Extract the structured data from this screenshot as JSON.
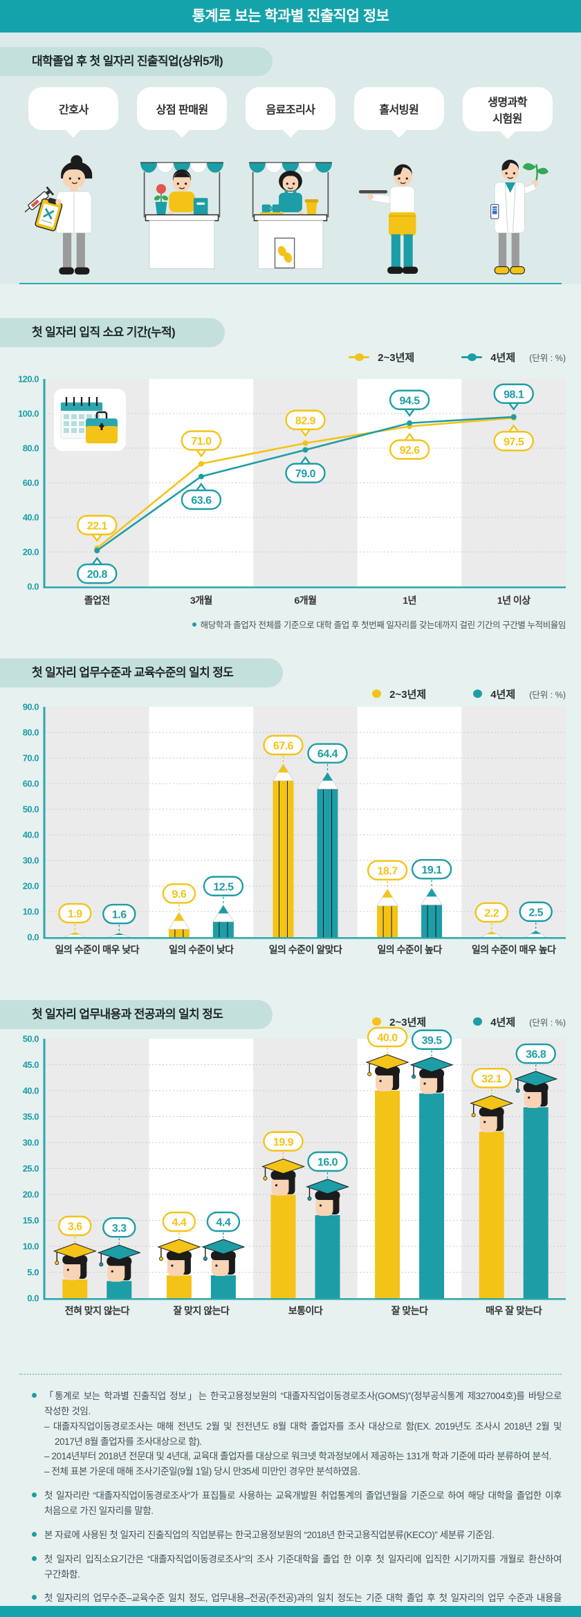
{
  "page": {
    "title": "통계로 보는 학과별 진출직업 정보",
    "unit_label": "(단위 : %)",
    "colors": {
      "header_teal": "#15A3AB",
      "series_yellow": "#F3C317",
      "series_teal": "#1D9DA6",
      "axis_teal": "#2AA7AE",
      "pill_bg": "#C3E0DD",
      "band_bg": "#DCEBE9",
      "page_bg": "#E7F1F0",
      "stripe_gray": "#EBEBEB"
    }
  },
  "jobs": {
    "header": "대학졸업 후 첫 일자리 진출직업(상위5개)",
    "items": [
      {
        "label": "간호사",
        "icon": "nurse-illustration"
      },
      {
        "label": "상점 판매원",
        "icon": "shop-seller-illustration"
      },
      {
        "label": "음료조리사",
        "icon": "barista-illustration"
      },
      {
        "label": "홀서빙원",
        "icon": "waiter-illustration"
      },
      {
        "label": "생명과학\n시험원",
        "icon": "lab-tester-illustration"
      }
    ]
  },
  "chart_data": [
    {
      "id": "time-to-first-job",
      "type": "line",
      "title": "첫 일자리 입직 소요 기간(누적)",
      "unit": "(단위 : %)",
      "categories": [
        "졸업전",
        "3개월",
        "6개월",
        "1년",
        "1년 이상"
      ],
      "series": [
        {
          "name": "2~3년제",
          "color": "#F3C317",
          "values": [
            22.1,
            71.0,
            82.9,
            92.6,
            97.5
          ]
        },
        {
          "name": "4년제",
          "color": "#1D9DA6",
          "values": [
            20.8,
            63.6,
            79.0,
            94.5,
            98.1
          ]
        }
      ],
      "ylim": [
        0,
        120
      ],
      "ytick_step": 20,
      "grid": "dotted",
      "legend_position": "top-right",
      "footnote": "해당학과 졸업자 전체를 기준으로 대학 졸업 후 첫번째 일자리를 갖는데까지 걸린 기간의 구간별 누적비율임"
    },
    {
      "id": "education-level-match",
      "type": "bar",
      "bar_style": "pencil",
      "title": "첫 일자리 업무수준과 교육수준의 일치 정도",
      "unit": "(단위 : %)",
      "categories": [
        "일의 수준이 매우 낮다",
        "일의 수준이 낮다",
        "일의 수준이 알맞다",
        "일의 수준이 높다",
        "일의 수준이 매우 높다"
      ],
      "series": [
        {
          "name": "2~3년제",
          "color": "#F3C317",
          "values": [
            1.9,
            9.6,
            67.6,
            18.7,
            2.2
          ]
        },
        {
          "name": "4년제",
          "color": "#1D9DA6",
          "values": [
            1.6,
            12.5,
            64.4,
            19.1,
            2.5
          ]
        }
      ],
      "ylim": [
        0,
        90
      ],
      "ytick_step": 10,
      "grid": "dotted",
      "legend_position": "top-right"
    },
    {
      "id": "major-match",
      "type": "bar",
      "bar_style": "graduate",
      "title": "첫 일자리 업무내용과 전공과의 일치 정도",
      "unit": "(단위 : %)",
      "categories": [
        "전혀 맞지 않는다",
        "잘 맞지 않는다",
        "보통이다",
        "잘 맞는다",
        "매우 잘 맞는다"
      ],
      "series": [
        {
          "name": "2~3년제",
          "color": "#F3C317",
          "values": [
            3.6,
            4.4,
            19.9,
            40.0,
            32.1
          ]
        },
        {
          "name": "4년제",
          "color": "#1D9DA6",
          "values": [
            3.3,
            4.4,
            16.0,
            39.5,
            36.8
          ]
        }
      ],
      "ylim": [
        0,
        50
      ],
      "ytick_step": 5,
      "grid": "dotted",
      "legend_position": "top-right"
    }
  ],
  "notes": [
    {
      "text": "「통계로 보는 학과별 진출직업 정보」는 한국고용정보원의 “대졸자직업이동경로조사(GOMS)”(정부공식통계 제327004호)를 바탕으로 작성한 것임.",
      "subs": [
        "대졸자직업이동경로조사는 매해 전년도 2월 및 전전년도 8월 대학 졸업자를 조사 대상으로 함(EX. 2019년도 조사시 2018년 2월 및 2017년 8월 졸업자를 조사대상으로 함).",
        "2014년부터 2018년 전문대 및 4년대, 교육대 졸업자를 대상으로 워크넷 학과정보에서 제공하는 131개 학과 기준에 따라 분류하여 분석.",
        "전체 표본 가운데 매해 조사기준일(9월 1일) 당시 만35세 미만인 경우만 분석하였음."
      ]
    },
    {
      "text": "첫 일자리란 “대졸자직업이동경로조사”가 표집틀로 사용하는 교육개발원 취업통계의 졸업년월을 기준으로 하여 해당 대학을 졸업한 이후 처음으로 가진 일자리를 말함.",
      "subs": []
    },
    {
      "text": "본 자료에 사용된 첫 일자리 진출직업의 직업분류는 한국고용정보원의 “2018년 한국고용직업분류(KECO)” 세분류 기준임.",
      "subs": []
    },
    {
      "text": "첫 일자리 입직소요기간은 “대졸자직업이동경로조사”의 조사 기준대학을 졸업 한 이후 첫 일자리에 입직한 시기까지를 개월로 환산하여 구간화함.",
      "subs": []
    },
    {
      "text": "첫 일자리의 업무수준–교육수준 일치 정도, 업무내용–전공(주전공)과의 일치 정도는 기준 대학 졸업 후 첫 일자리의 업무 수준과 내용을 응답자가 주관적으로 판단하여 답한 내용임.",
      "subs": []
    }
  ]
}
